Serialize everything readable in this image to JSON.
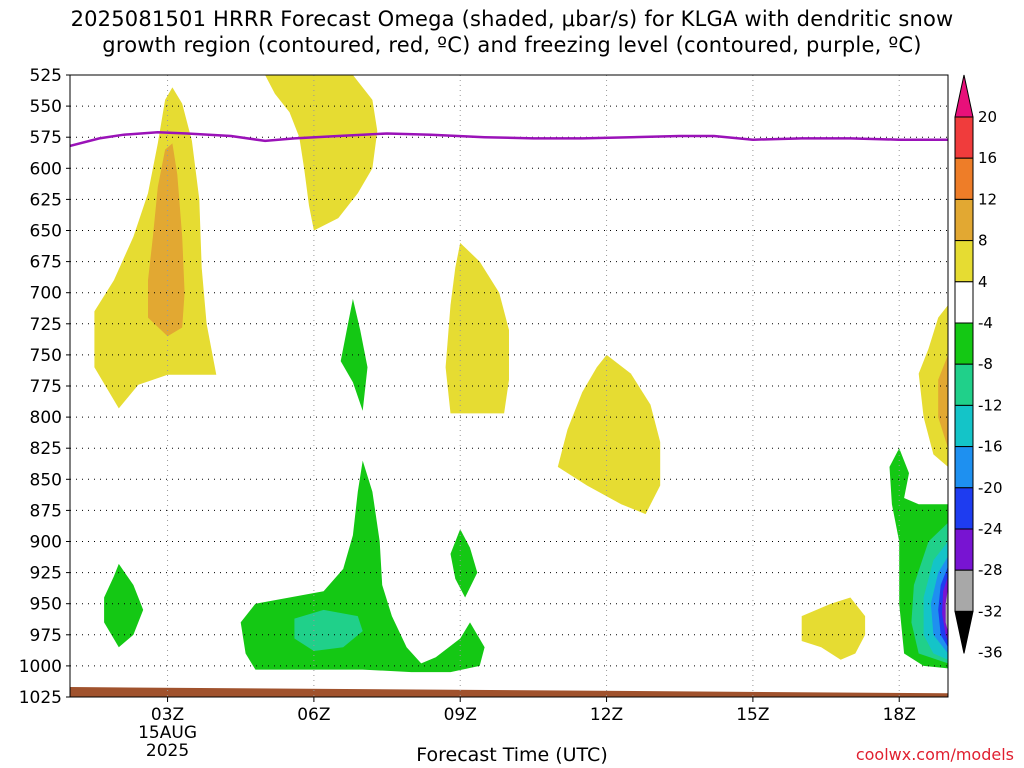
{
  "title": {
    "line1": "2025081501 HRRR Forecast Omega (shaded, μbar/s) for KLGA with dendritic snow",
    "line2": "growth region (contoured, red, ºC) and freezing level (contoured, purple, ºC)"
  },
  "credit": "coolwx.com/models",
  "chart_data": {
    "type": "heatmap",
    "xlabel": "Forecast Time (UTC)",
    "ylabel": "",
    "x_ticks": [
      {
        "label": "03Z",
        "hour": 3
      },
      {
        "label": "06Z",
        "hour": 6
      },
      {
        "label": "09Z",
        "hour": 9
      },
      {
        "label": "12Z",
        "hour": 12
      },
      {
        "label": "15Z",
        "hour": 15
      },
      {
        "label": "18Z",
        "hour": 18
      }
    ],
    "date_label": [
      "15AUG",
      "2025"
    ],
    "xlim": [
      1.0,
      19.0
    ],
    "y_ticks": [
      525,
      550,
      575,
      600,
      625,
      650,
      675,
      700,
      725,
      750,
      775,
      800,
      825,
      850,
      875,
      900,
      925,
      950,
      975,
      1000,
      1025
    ],
    "ylim": [
      1025,
      525
    ],
    "y_inverted": true,
    "grid": true,
    "colorbar": {
      "labels": [
        "20",
        "16",
        "12",
        "8",
        "4",
        "-4",
        "-8",
        "-12",
        "-16",
        "-20",
        "-24",
        "-28",
        "-32",
        "-36"
      ],
      "colors": [
        "#e8107a",
        "#f03c3c",
        "#ee7d28",
        "#e2a832",
        "#e6dc32",
        "#ffffff",
        "#14c814",
        "#20d08a",
        "#14c4c8",
        "#1e90f0",
        "#1e3cf0",
        "#7814d2",
        "#a8a8a8",
        "#000000"
      ]
    },
    "series": [
      {
        "name": "freezing level",
        "color": "#9a12b8",
        "points": [
          [
            1.0,
            582
          ],
          [
            1.6,
            576
          ],
          [
            2.1,
            573
          ],
          [
            2.8,
            571
          ],
          [
            3.4,
            572
          ],
          [
            4.3,
            574
          ],
          [
            5.0,
            578
          ],
          [
            5.6,
            576
          ],
          [
            6.5,
            574
          ],
          [
            7.5,
            572
          ],
          [
            8.4,
            573
          ],
          [
            9.5,
            575
          ],
          [
            10.5,
            576
          ],
          [
            11.5,
            576
          ],
          [
            12.5,
            575
          ],
          [
            13.5,
            574
          ],
          [
            14.2,
            574
          ],
          [
            15.0,
            577
          ],
          [
            16.0,
            576
          ],
          [
            17.0,
            576
          ],
          [
            18.0,
            577
          ],
          [
            19.0,
            577
          ]
        ]
      }
    ],
    "regions": [
      {
        "range": "4 to 8",
        "color": "#e6dc32",
        "pts": [
          [
            2.0,
            793
          ],
          [
            1.5,
            760
          ],
          [
            1.5,
            715
          ],
          [
            1.9,
            690
          ],
          [
            2.3,
            655
          ],
          [
            2.6,
            620
          ],
          [
            2.8,
            580
          ],
          [
            2.95,
            545
          ],
          [
            3.1,
            535
          ],
          [
            3.3,
            548
          ],
          [
            3.5,
            578
          ],
          [
            3.65,
            625
          ],
          [
            3.7,
            680
          ],
          [
            3.8,
            725
          ],
          [
            4.0,
            766
          ],
          [
            3.6,
            766
          ],
          [
            3.0,
            766
          ],
          [
            2.4,
            774
          ]
        ]
      },
      {
        "range": "8 to 12",
        "color": "#e2a832",
        "pts": [
          [
            3.0,
            735
          ],
          [
            2.6,
            720
          ],
          [
            2.6,
            690
          ],
          [
            2.7,
            655
          ],
          [
            2.8,
            615
          ],
          [
            2.95,
            585
          ],
          [
            3.1,
            580
          ],
          [
            3.2,
            605
          ],
          [
            3.3,
            655
          ],
          [
            3.35,
            700
          ],
          [
            3.3,
            728
          ]
        ]
      },
      {
        "range": "4 to 8",
        "color": "#e6dc32",
        "pts": [
          [
            5.0,
            525
          ],
          [
            6.8,
            525
          ],
          [
            7.2,
            545
          ],
          [
            7.3,
            570
          ],
          [
            7.2,
            600
          ],
          [
            6.9,
            620
          ],
          [
            6.5,
            640
          ],
          [
            6.0,
            650
          ],
          [
            5.9,
            630
          ],
          [
            5.8,
            600
          ],
          [
            5.7,
            575
          ],
          [
            5.5,
            555
          ],
          [
            5.2,
            540
          ]
        ]
      },
      {
        "range": "4 to 8",
        "color": "#e6dc32",
        "pts": [
          [
            8.8,
            797
          ],
          [
            8.7,
            760
          ],
          [
            8.8,
            710
          ],
          [
            8.9,
            680
          ],
          [
            9.0,
            660
          ],
          [
            9.4,
            675
          ],
          [
            9.8,
            700
          ],
          [
            10.0,
            730
          ],
          [
            10.0,
            770
          ],
          [
            9.9,
            797
          ]
        ]
      },
      {
        "range": "4 to 8",
        "color": "#e6dc32",
        "pts": [
          [
            12.0,
            750
          ],
          [
            12.5,
            765
          ],
          [
            12.9,
            790
          ],
          [
            13.1,
            820
          ],
          [
            13.1,
            855
          ],
          [
            12.8,
            878
          ],
          [
            12.3,
            870
          ],
          [
            11.6,
            855
          ],
          [
            11.0,
            840
          ],
          [
            11.2,
            810
          ],
          [
            11.5,
            780
          ],
          [
            11.8,
            760
          ]
        ]
      },
      {
        "range": "4 to 8",
        "color": "#e6dc32",
        "pts": [
          [
            17.0,
            945
          ],
          [
            17.3,
            960
          ],
          [
            17.3,
            975
          ],
          [
            17.1,
            990
          ],
          [
            16.8,
            995
          ],
          [
            16.4,
            985
          ],
          [
            16.0,
            980
          ],
          [
            16.0,
            960
          ],
          [
            16.6,
            950
          ]
        ]
      },
      {
        "range": "4 to 8",
        "color": "#e6dc32",
        "pts": [
          [
            19.0,
            710
          ],
          [
            18.8,
            720
          ],
          [
            18.6,
            745
          ],
          [
            18.4,
            765
          ],
          [
            18.5,
            800
          ],
          [
            18.7,
            830
          ],
          [
            19.0,
            840
          ]
        ]
      },
      {
        "range": "8 to 12",
        "color": "#e2a832",
        "pts": [
          [
            19.0,
            750
          ],
          [
            18.8,
            770
          ],
          [
            18.8,
            800
          ],
          [
            19.0,
            825
          ]
        ]
      },
      {
        "range": "-8 to -4",
        "color": "#14c814",
        "pts": [
          [
            2.0,
            918
          ],
          [
            2.3,
            935
          ],
          [
            2.5,
            955
          ],
          [
            2.3,
            975
          ],
          [
            2.0,
            985
          ],
          [
            1.7,
            965
          ],
          [
            1.7,
            945
          ],
          [
            1.9,
            928
          ]
        ]
      },
      {
        "range": "-8 to -4",
        "color": "#14c814",
        "pts": [
          [
            6.8,
            705
          ],
          [
            6.95,
            730
          ],
          [
            7.1,
            760
          ],
          [
            7.0,
            795
          ],
          [
            6.8,
            772
          ],
          [
            6.55,
            755
          ],
          [
            6.7,
            725
          ]
        ]
      },
      {
        "range": "-8 to -4",
        "color": "#14c814",
        "pts": [
          [
            4.8,
            1003
          ],
          [
            4.6,
            990
          ],
          [
            4.5,
            965
          ],
          [
            4.8,
            950
          ],
          [
            5.5,
            945
          ],
          [
            6.2,
            940
          ],
          [
            6.6,
            922
          ],
          [
            6.8,
            895
          ],
          [
            6.9,
            860
          ],
          [
            7.0,
            835
          ],
          [
            7.2,
            860
          ],
          [
            7.35,
            900
          ],
          [
            7.4,
            935
          ],
          [
            7.6,
            960
          ],
          [
            7.9,
            985
          ],
          [
            8.2,
            998
          ],
          [
            8.5,
            993
          ],
          [
            9.0,
            978
          ],
          [
            9.2,
            965
          ],
          [
            9.5,
            985
          ],
          [
            9.4,
            1000
          ],
          [
            8.8,
            1005
          ],
          [
            8.0,
            1005
          ],
          [
            7.0,
            1003
          ],
          [
            6.0,
            1003
          ]
        ]
      },
      {
        "range": "-8 to -4",
        "color": "#14c814",
        "pts": [
          [
            9.0,
            890
          ],
          [
            9.2,
            905
          ],
          [
            9.35,
            925
          ],
          [
            9.1,
            945
          ],
          [
            8.9,
            930
          ],
          [
            8.8,
            910
          ]
        ]
      },
      {
        "range": "-8 to -4",
        "color": "#14c814",
        "pts": [
          [
            18.0,
            825
          ],
          [
            18.2,
            845
          ],
          [
            18.1,
            865
          ],
          [
            18.4,
            870
          ],
          [
            19.0,
            870
          ],
          [
            19.0,
            1002
          ],
          [
            18.5,
            1000
          ],
          [
            18.1,
            990
          ],
          [
            18.0,
            950
          ],
          [
            18.0,
            900
          ],
          [
            17.85,
            870
          ],
          [
            17.8,
            840
          ]
        ]
      },
      {
        "range": "-12 to -8",
        "color": "#20d08a",
        "pts": [
          [
            5.6,
            962
          ],
          [
            6.2,
            955
          ],
          [
            6.9,
            960
          ],
          [
            7.0,
            972
          ],
          [
            6.6,
            985
          ],
          [
            6.0,
            988
          ],
          [
            5.6,
            978
          ]
        ]
      },
      {
        "range": "-12 to -8",
        "color": "#20d08a",
        "pts": [
          [
            19.0,
            885
          ],
          [
            18.6,
            900
          ],
          [
            18.3,
            935
          ],
          [
            18.25,
            965
          ],
          [
            18.4,
            990
          ],
          [
            19.0,
            998
          ]
        ]
      },
      {
        "range": "-16 to -12",
        "color": "#14c4c8",
        "pts": [
          [
            19.0,
            900
          ],
          [
            18.7,
            915
          ],
          [
            18.5,
            945
          ],
          [
            18.5,
            975
          ],
          [
            18.7,
            990
          ],
          [
            19.0,
            995
          ]
        ]
      },
      {
        "range": "-20 to -16",
        "color": "#1e90f0",
        "pts": [
          [
            19.0,
            912
          ],
          [
            18.8,
            925
          ],
          [
            18.65,
            950
          ],
          [
            18.7,
            975
          ],
          [
            19.0,
            990
          ]
        ]
      },
      {
        "range": "-24 to -20",
        "color": "#1e3cf0",
        "pts": [
          [
            19.0,
            920
          ],
          [
            18.85,
            935
          ],
          [
            18.8,
            955
          ],
          [
            18.85,
            975
          ],
          [
            19.0,
            985
          ]
        ]
      },
      {
        "range": "-28 to -24",
        "color": "#7814d2",
        "pts": [
          [
            19.0,
            928
          ],
          [
            18.9,
            940
          ],
          [
            18.88,
            958
          ],
          [
            18.95,
            975
          ],
          [
            19.0,
            980
          ]
        ]
      },
      {
        "range": "-32 to -28",
        "color": "#a8a8a8",
        "pts": [
          [
            19.0,
            938
          ],
          [
            18.95,
            950
          ],
          [
            18.95,
            965
          ],
          [
            19.0,
            972
          ]
        ]
      }
    ],
    "ground": {
      "color": "#a0522d",
      "top_left": 1017,
      "top_right": 1022,
      "bottom": 1030
    }
  }
}
